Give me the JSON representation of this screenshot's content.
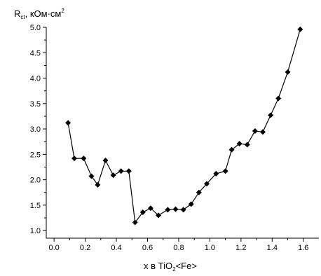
{
  "chart_data": {
    "type": "line",
    "xlabel": {
      "prefix": "x в TiO",
      "sub": "2",
      "suffix": "<Fe>"
    },
    "ylabel": {
      "symbol": "R",
      "sub": "ct",
      "unit": ", кОм·см",
      "sup": "2"
    },
    "xlim": [
      -0.05,
      1.7
    ],
    "ylim": [
      0.85,
      5.0
    ],
    "x_ticks": [
      "0.0",
      "0.2",
      "0.4",
      "0.6",
      "0.8",
      "1.0",
      "1.2",
      "1.4",
      "1.6"
    ],
    "y_ticks": [
      "1.0",
      "1.5",
      "2.0",
      "2.5",
      "3.0",
      "3.5",
      "4.0",
      "4.5",
      "5.0"
    ],
    "grid": false,
    "marker": "diamond",
    "series": [
      {
        "color": "#000000",
        "x": [
          0.09,
          0.13,
          0.19,
          0.24,
          0.28,
          0.33,
          0.38,
          0.43,
          0.48,
          0.52,
          0.57,
          0.62,
          0.67,
          0.73,
          0.78,
          0.83,
          0.88,
          0.93,
          0.98,
          1.04,
          1.1,
          1.14,
          1.19,
          1.24,
          1.29,
          1.34,
          1.39,
          1.44,
          1.5,
          1.58
        ],
        "y": [
          3.12,
          2.42,
          2.42,
          2.07,
          1.9,
          2.38,
          2.09,
          2.17,
          2.17,
          1.16,
          1.36,
          1.44,
          1.3,
          1.41,
          1.42,
          1.41,
          1.52,
          1.75,
          1.92,
          2.12,
          2.17,
          2.59,
          2.71,
          2.69,
          2.96,
          2.94,
          3.27,
          3.6,
          4.12,
          4.96
        ]
      }
    ]
  }
}
